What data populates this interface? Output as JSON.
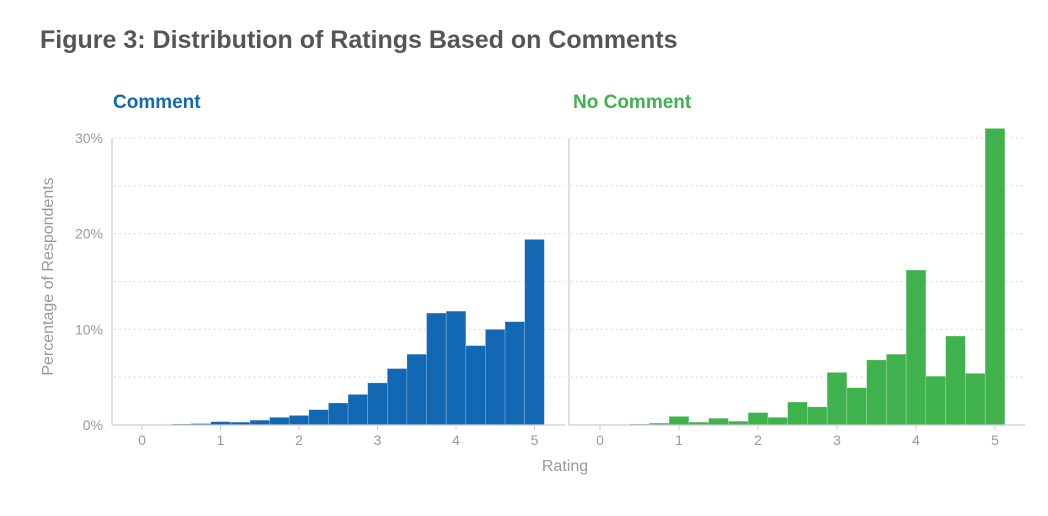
{
  "title": "Figure 3: Distribution of Ratings Based on Comments",
  "colors": {
    "comment": "#1268b3",
    "no_comment": "#3fb24d",
    "grid": "#cfcfcf",
    "tick": "#999999"
  },
  "chart_data": {
    "type": "bar",
    "xlabel": "Rating",
    "ylabel": "Percentage of Respondents",
    "ylim": [
      0,
      30
    ],
    "y_ticks": [
      "0%",
      "10%",
      "20%",
      "30%"
    ],
    "x_ticks": [
      "0",
      "1",
      "2",
      "3",
      "4",
      "5"
    ],
    "grid": true,
    "bin_width": 0.25,
    "bins": [
      0,
      0.25,
      0.5,
      0.75,
      1,
      1.25,
      1.5,
      1.75,
      2,
      2.25,
      2.5,
      2.75,
      3,
      3.25,
      3.5,
      3.75,
      4,
      4.25,
      4.5,
      4.75,
      5
    ],
    "series": [
      {
        "name": "Comment",
        "values": [
          0,
          0.05,
          0.1,
          0.15,
          0.35,
          0.3,
          0.5,
          0.8,
          1.0,
          1.6,
          2.3,
          3.2,
          4.4,
          5.9,
          7.4,
          11.7,
          11.9,
          8.3,
          10.0,
          10.8,
          19.4
        ]
      },
      {
        "name": "No Comment",
        "values": [
          0,
          0.05,
          0.1,
          0.2,
          0.9,
          0.3,
          0.7,
          0.4,
          1.3,
          0.8,
          2.4,
          1.9,
          5.5,
          3.9,
          6.8,
          7.4,
          16.2,
          5.1,
          9.3,
          5.4,
          31.0
        ]
      }
    ]
  }
}
